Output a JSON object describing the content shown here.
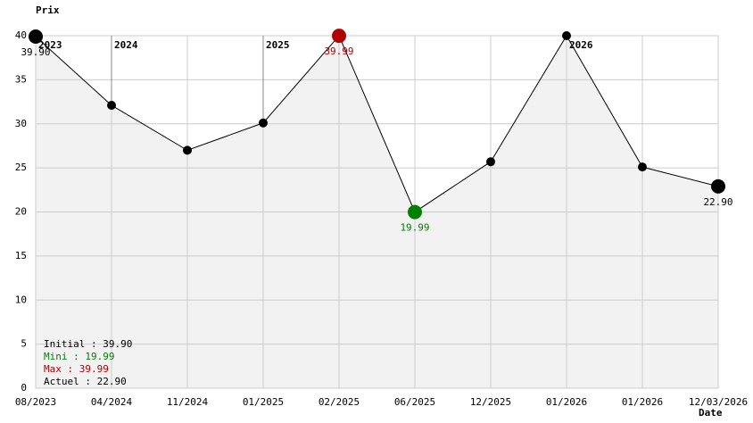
{
  "chart_data": {
    "type": "line",
    "y_label": "Prix",
    "x_label": "Date",
    "categories": [
      "08/2023",
      "04/2024",
      "11/2024",
      "01/2025",
      "02/2025",
      "06/2025",
      "12/2025",
      "01/2026",
      "01/2026",
      "12/03/2026"
    ],
    "series": [
      {
        "name": "Prix",
        "color": "#000000",
        "values": [
          39.9,
          32.1,
          27.0,
          30.1,
          39.99,
          19.99,
          25.7,
          40.0,
          25.1,
          22.9
        ],
        "value_labels": [
          "39.90",
          null,
          null,
          null,
          "39.99",
          "19.99",
          null,
          null,
          null,
          "22.90"
        ],
        "point_colors": [
          "#000000",
          "#000000",
          "#000000",
          "#000000",
          "#b00000",
          "#008000",
          "#000000",
          "#000000",
          "#000000",
          "#000000"
        ]
      }
    ],
    "ylim": [
      0,
      40
    ],
    "yticks": [
      0,
      5,
      10,
      15,
      20,
      25,
      30,
      35,
      40
    ],
    "grid": true,
    "fill": "#f2f2f2",
    "year_markers": [
      {
        "label": "2023",
        "x": 0
      },
      {
        "label": "2024",
        "x": 1
      },
      {
        "label": "2025",
        "x": 3
      },
      {
        "label": "2026",
        "x": 7
      }
    ],
    "summary": [
      {
        "text": "Initial : 39.90",
        "color": "#000000"
      },
      {
        "text": "Mini : 19.99",
        "color": "#008000"
      },
      {
        "text": "Max : 39.99",
        "color": "#b00000"
      },
      {
        "text": "Actuel : 22.90",
        "color": "#000000"
      }
    ]
  }
}
